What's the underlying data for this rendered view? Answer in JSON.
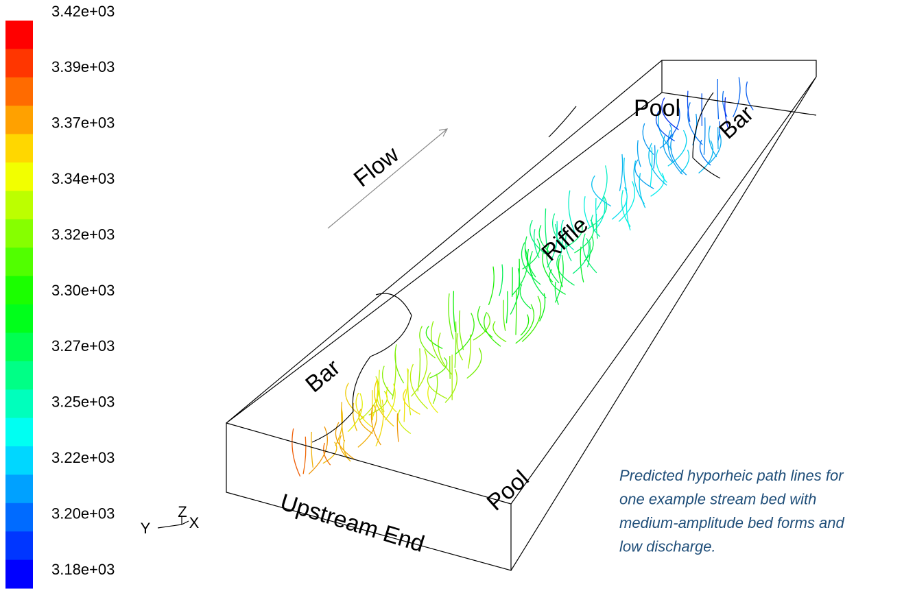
{
  "colorbar": {
    "labels": [
      "3.42e+03",
      "3.39e+03",
      "3.37e+03",
      "3.34e+03",
      "3.32e+03",
      "3.30e+03",
      "3.27e+03",
      "3.25e+03",
      "3.22e+03",
      "3.20e+03",
      "3.18e+03"
    ]
  },
  "annotations": {
    "flow": "Flow",
    "pool_top": "Pool",
    "bar_top": "Bar",
    "riffle": "Riffle",
    "bar_left": "Bar",
    "upstream": "Upstream End",
    "pool_bottom": "Pool"
  },
  "axes": {
    "z": "Z",
    "y": "Y",
    "x": "X"
  },
  "caption": [
    "Predicted hyporheic path lines for",
    "one example stream bed with",
    "medium-amplitude bed forms and",
    "low discharge."
  ]
}
